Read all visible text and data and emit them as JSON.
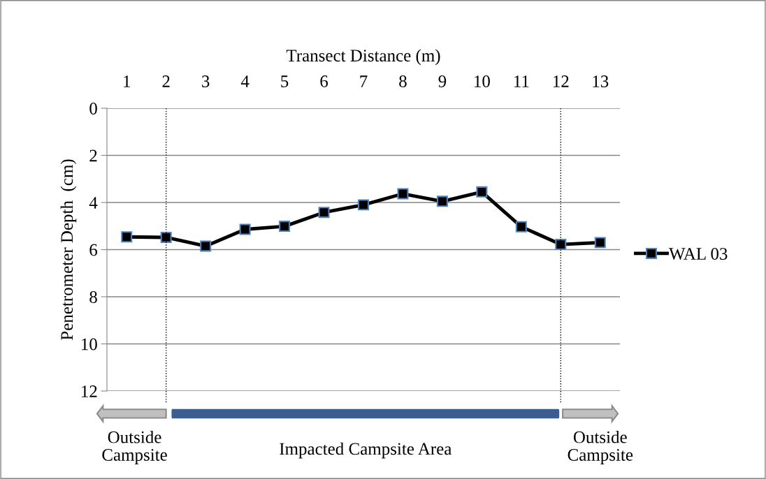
{
  "chart_data": {
    "type": "line",
    "xlabel": "Transect Distance (m)",
    "ylabel": "Penetrometer Depth  (cm)",
    "x": [
      1,
      2,
      3,
      4,
      5,
      6,
      7,
      8,
      9,
      10,
      11,
      12,
      13
    ],
    "xlim": [
      0.5,
      13.5
    ],
    "xticks": [
      1,
      2,
      3,
      4,
      5,
      6,
      7,
      8,
      9,
      10,
      11,
      12,
      13
    ],
    "ylim": [
      12,
      0
    ],
    "yticks": [
      0,
      2,
      4,
      6,
      8,
      10,
      12
    ],
    "series": [
      {
        "name": "WAL 03",
        "color": "#000000",
        "values": [
          5.46,
          5.48,
          5.85,
          5.14,
          5.01,
          4.42,
          4.1,
          3.63,
          3.95,
          3.55,
          5.03,
          5.78,
          5.7
        ]
      }
    ],
    "ref_lines": [
      {
        "axis": "x",
        "value": 2,
        "color": "#000000",
        "line_style": "dotted"
      },
      {
        "axis": "x",
        "value": 12,
        "color": "#000000",
        "line_style": "dotted"
      }
    ],
    "annotations": [
      "Outside\nCampsite",
      "Impacted Campsite Area",
      "Outside\nCampsite"
    ],
    "grid": "y",
    "legend": "right",
    "marker": "square",
    "line_style": "solid"
  }
}
